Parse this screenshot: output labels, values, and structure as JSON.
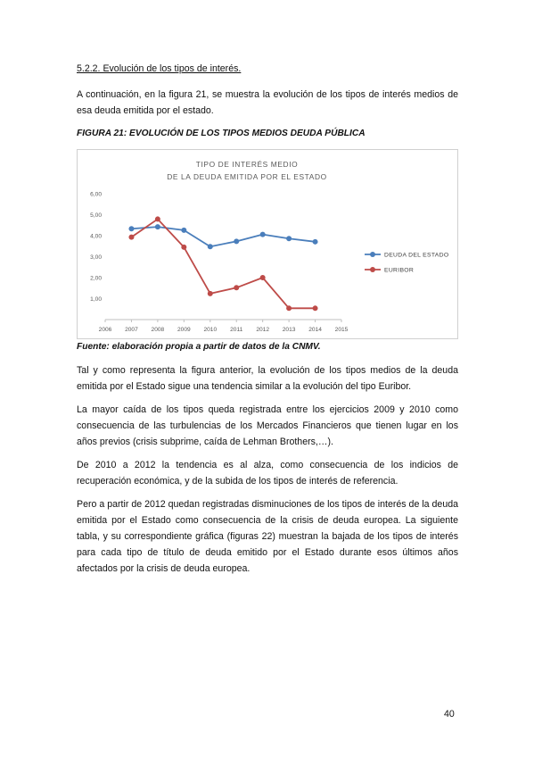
{
  "section": {
    "heading": "5.2.2. Evolución de los tipos de interés."
  },
  "paragraphs": {
    "intro": "A continuación, en la figura 21, se muestra la evolución de los tipos de interés medios de esa deuda emitida por el estado.",
    "p1": "Tal y como representa la figura anterior, la evolución de los tipos medios de la deuda emitida por el Estado sigue una tendencia similar a la evolución del tipo Euribor.",
    "p2": "La mayor caída de los tipos queda registrada entre los ejercicios 2009 y 2010 como consecuencia de las turbulencias de los Mercados Financieros que tienen lugar en los años previos (crisis subprime, caída de Lehman Brothers,…).",
    "p3": "De 2010 a 2012 la tendencia es al alza, como consecuencia de los indicios de recuperación económica, y de la subida de los tipos de interés de referencia.",
    "p4": "Pero a partir de 2012 quedan registradas disminuciones de los tipos de interés de la deuda emitida por el Estado como consecuencia de la crisis de deuda europea. La siguiente tabla, y su correspondiente gráfica (figuras 22) muestran la bajada de los tipos de interés para cada tipo de título de deuda emitido por el Estado durante esos últimos años afectados por la crisis de deuda europea."
  },
  "figure": {
    "title": "FIGURA 21: EVOLUCIÓN DE LOS TIPOS MEDIOS DEUDA PÚBLICA",
    "source": "Fuente: elaboración propia a partir de datos de la CNMV."
  },
  "page_number": "40",
  "chart_data": {
    "type": "line",
    "title_lines": [
      "TIPO DE INTERÉS MEDIO",
      "DE LA DEUDA EMITIDA POR EL ESTADO"
    ],
    "xlabel": "",
    "ylabel": "",
    "xlim": [
      2006,
      2015
    ],
    "ylim": [
      0,
      6
    ],
    "x_ticks": [
      2006,
      2007,
      2008,
      2009,
      2010,
      2011,
      2012,
      2013,
      2014,
      2015
    ],
    "y_ticks": [
      1,
      2,
      3,
      4,
      5,
      6
    ],
    "y_tick_labels": [
      "1,00",
      "2,00",
      "3,00",
      "4,00",
      "5,00",
      "6,00"
    ],
    "grid": false,
    "legend_position": "right",
    "series": [
      {
        "name": "DEUDA DEL ESTADO",
        "color": "#4a7ebb",
        "x": [
          2007,
          2008,
          2009,
          2010,
          2011,
          2012,
          2013,
          2014
        ],
        "y": [
          4.33,
          4.42,
          4.26,
          3.48,
          3.73,
          4.06,
          3.86,
          3.71
        ]
      },
      {
        "name": "EURIBOR",
        "color": "#be4b48",
        "x": [
          2007,
          2008,
          2009,
          2010,
          2011,
          2012,
          2013,
          2014
        ],
        "y": [
          3.93,
          4.79,
          3.45,
          1.24,
          1.52,
          2.0,
          0.54,
          0.54
        ]
      }
    ]
  }
}
